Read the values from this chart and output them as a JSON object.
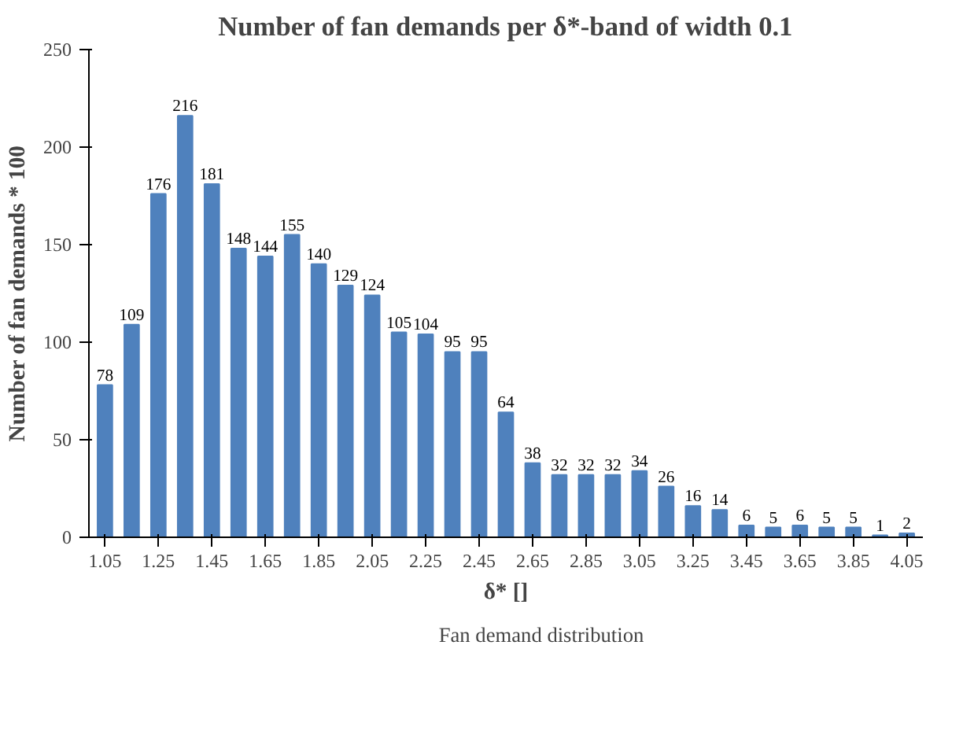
{
  "chart_data": {
    "type": "bar",
    "title": "Number of fan demands per δ*-band of width 0.1",
    "xlabel": "δ* []",
    "ylabel": "Number of fan demands * 100",
    "categories": [
      "1.05",
      null,
      "1.25",
      null,
      "1.45",
      null,
      "1.65",
      null,
      "1.85",
      null,
      "2.05",
      null,
      "2.25",
      null,
      "2.45",
      null,
      "2.65",
      null,
      "2.85",
      null,
      "3.05",
      null,
      "3.25",
      null,
      "3.45",
      null,
      "3.65",
      null,
      "3.85",
      null,
      "4.05"
    ],
    "series": [
      {
        "name": "Fan demand distribution",
        "color": "#4f81bd",
        "values": [
          78,
          109,
          176,
          216,
          181,
          148,
          144,
          155,
          140,
          129,
          124,
          105,
          104,
          95,
          95,
          64,
          38,
          32,
          32,
          32,
          34,
          26,
          16,
          14,
          6,
          5,
          6,
          5,
          5,
          1,
          2
        ]
      }
    ],
    "ylim": [
      0,
      250
    ],
    "yticks": [
      0,
      50,
      100,
      150,
      200,
      250
    ],
    "grid": false,
    "legend": "bottom",
    "data_labels": true
  }
}
